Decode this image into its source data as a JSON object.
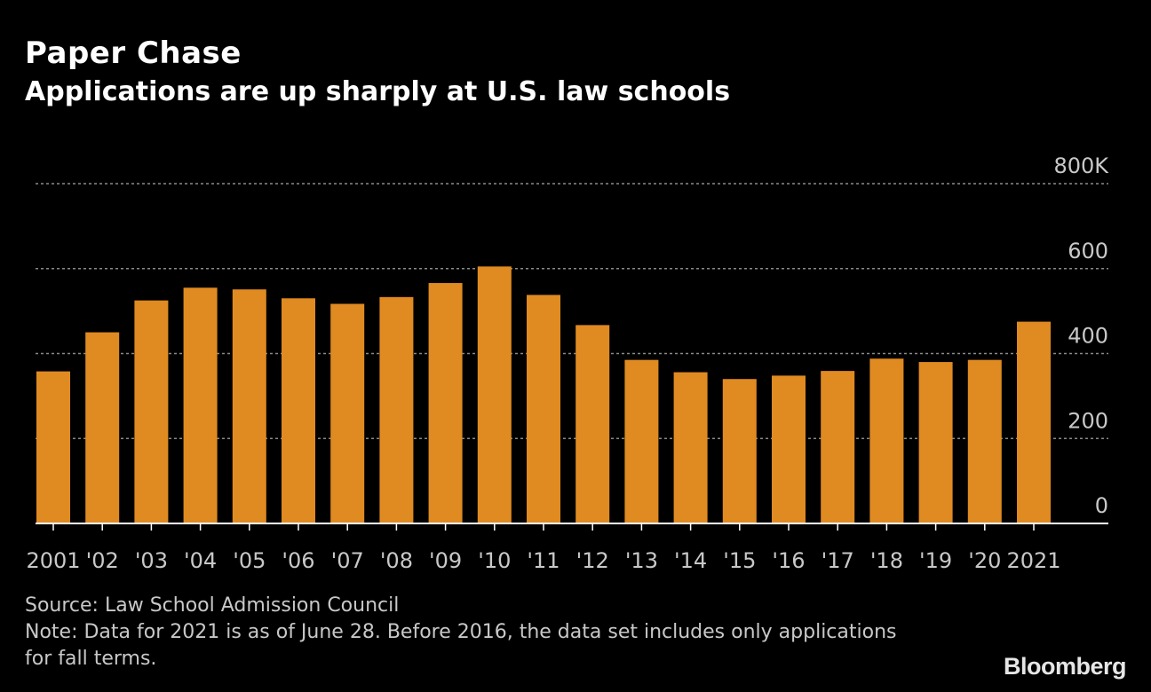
{
  "header": {
    "title": "Paper Chase",
    "subtitle": "Applications are up sharply at U.S. law schools"
  },
  "chart_data": {
    "type": "bar",
    "title": "Paper Chase",
    "subtitle": "Applications are up sharply at U.S. law schools",
    "xlabel": "",
    "ylabel": "",
    "categories": [
      "2001",
      "'02",
      "'03",
      "'04",
      "'05",
      "'06",
      "'07",
      "'08",
      "'09",
      "'10",
      "'11",
      "'12",
      "'13",
      "'14",
      "'15",
      "'16",
      "'17",
      "'18",
      "'19",
      "'20",
      "2021"
    ],
    "values": [
      358,
      450,
      525,
      555,
      551,
      530,
      517,
      533,
      566,
      605,
      538,
      467,
      385,
      356,
      340,
      348,
      359,
      388,
      380,
      385,
      475
    ],
    "value_unit": "thousands of applications",
    "ylim": [
      0,
      800
    ],
    "y_ticks": [
      0,
      200,
      400,
      600,
      800
    ],
    "y_tick_labels": [
      "0",
      "200",
      "400",
      "600",
      "800K"
    ],
    "y_axis_side": "right",
    "grid": true,
    "bar_color": "#e08a22"
  },
  "footer": {
    "source": "Source: Law School Admission Council",
    "note": "Note: Data for 2021 is as of June 28. Before 2016, the data set includes only applications for fall terms."
  },
  "brand": {
    "logo_text": "Bloomberg"
  },
  "colors": {
    "background": "#000000",
    "bar": "#e08a22",
    "grid": "#8a8a8a",
    "text": "#ffffff",
    "muted_text": "#c8c8c8"
  }
}
